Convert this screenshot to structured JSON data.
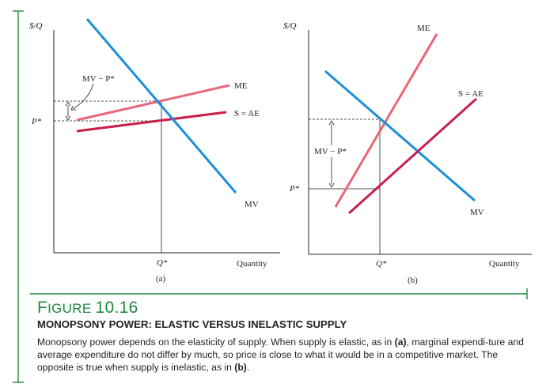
{
  "figure": {
    "label_prefix": "F",
    "label_rest": "IGURE",
    "number": "10.16",
    "title": "MONOPSONY POWER: ELASTIC VERSUS INELASTIC SUPPLY",
    "body_start": "Monopsony power depends on the elasticity of supply. When supply is elastic, as in ",
    "body_ref_a": "(a)",
    "body_middle": ", marginal expendi-ture and average expenditure do not differ by much, so price is close to what it would be in a competitive market. The opposite is true when supply is inelastic, as in ",
    "body_ref_b": "(b)",
    "body_end": "."
  },
  "panel_a": {
    "y_axis_label": "$/Q",
    "x_axis_label": "Quantity",
    "panel_label": "(a)",
    "q_label": "Q*",
    "p_label": "P*",
    "gap_label": "MV − P*",
    "curves": {
      "me": "ME",
      "supply": "S = AE",
      "mv": "MV"
    }
  },
  "panel_b": {
    "y_axis_label": "$/Q",
    "x_axis_label": "Quantity",
    "panel_label": "(b)",
    "q_label": "Q*",
    "p_label": "P*",
    "gap_label": "MV − P*",
    "curves": {
      "me": "ME",
      "supply": "S = AE",
      "mv": "MV"
    }
  },
  "colors": {
    "mv": "#1c8fd6",
    "me": "#e8677a",
    "supply": "#c8204c",
    "accent_green": "#1e8a3e",
    "axis": "#231f20"
  }
}
